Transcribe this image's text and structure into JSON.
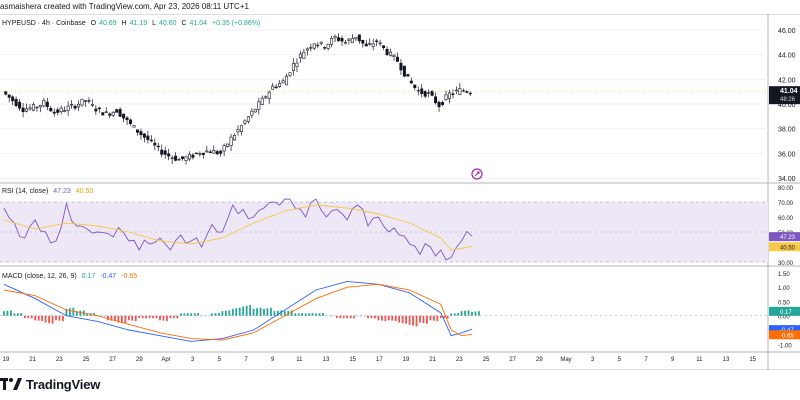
{
  "header": {
    "author_line": "asmaishera created with TradingView.com, Apr 23, 2026 08:11 UTC+1"
  },
  "brand": {
    "name": "TradingView"
  },
  "colors": {
    "up": "#26a69a",
    "down": "#ef5350",
    "rsi_line": "#7e57c2",
    "rsi_ma": "#f7c948",
    "rsi_band": "#ede7f6",
    "macd_line": "#2962ff",
    "signal_line": "#ff6d00",
    "hist_up": "#26a69a",
    "hist_down": "#ef5350",
    "price_label_bg": "#131722",
    "grid": "#f0f3fa"
  },
  "chart_data": [
    {
      "type": "candlestick",
      "legend": {
        "symbol": "HYPEUSD · 4h · Coinbase",
        "open_label": "O",
        "open": "40.69",
        "high_label": "H",
        "high": "41.19",
        "low_label": "L",
        "low": "40.60",
        "close_label": "C",
        "close": "41.04",
        "change": "+0.35 (+0.86%)"
      },
      "last_price": "41.04",
      "countdown": "48:26",
      "ylim": [
        34,
        46
      ],
      "yticks": [
        "46.00",
        "44.00",
        "42.00",
        "40.00",
        "38.00",
        "36.00",
        "34.00"
      ],
      "xlim": [
        0,
        60
      ],
      "price_path": [
        [
          0,
          41.0
        ],
        [
          1,
          40.3
        ],
        [
          2,
          39.6
        ],
        [
          3,
          39.7
        ],
        [
          4,
          40.1
        ],
        [
          5,
          39.3
        ],
        [
          6,
          39.6
        ],
        [
          7,
          39.9
        ],
        [
          8,
          40.3
        ],
        [
          9,
          39.6
        ],
        [
          10,
          39.2
        ],
        [
          11,
          39.5
        ],
        [
          12,
          38.6
        ],
        [
          13,
          37.8
        ],
        [
          14,
          37.1
        ],
        [
          15,
          36.3
        ],
        [
          16,
          35.8
        ],
        [
          17,
          35.5
        ],
        [
          18,
          35.7
        ],
        [
          19,
          36.1
        ],
        [
          20,
          36.2
        ],
        [
          21,
          36.0
        ],
        [
          22,
          37.2
        ],
        [
          23,
          38.2
        ],
        [
          24,
          39.3
        ],
        [
          25,
          40.3
        ],
        [
          26,
          41.4
        ],
        [
          27,
          41.8
        ],
        [
          28,
          43.2
        ],
        [
          29,
          44.3
        ],
        [
          30,
          45.0
        ],
        [
          31,
          44.7
        ],
        [
          32,
          45.4
        ],
        [
          33,
          45.0
        ],
        [
          34,
          45.5
        ],
        [
          35,
          44.6
        ],
        [
          36,
          45.1
        ],
        [
          37,
          44.2
        ],
        [
          38,
          43.5
        ],
        [
          39,
          42.0
        ],
        [
          40,
          41.0
        ],
        [
          41,
          40.8
        ],
        [
          42,
          39.9
        ],
        [
          43,
          40.8
        ],
        [
          44,
          41.1
        ],
        [
          45,
          41.04
        ]
      ]
    },
    {
      "type": "line",
      "name": "RSI",
      "legend": {
        "label": "RSI (14, close)",
        "value1": "47.23",
        "value2": "40.50"
      },
      "ylim": [
        30,
        80
      ],
      "yticks": [
        "80.00",
        "70.00",
        "60.00",
        "50.00",
        "40.00",
        "30.00"
      ],
      "band": [
        30,
        70
      ],
      "last_rsi": "47.23",
      "last_ma": "40.50",
      "rsi_path": [
        [
          0,
          66
        ],
        [
          1,
          56
        ],
        [
          2,
          46
        ],
        [
          3,
          58
        ],
        [
          4,
          50
        ],
        [
          5,
          44
        ],
        [
          6,
          69
        ],
        [
          7,
          54
        ],
        [
          8,
          52
        ],
        [
          9,
          50
        ],
        [
          10,
          49
        ],
        [
          11,
          53
        ],
        [
          12,
          44
        ],
        [
          13,
          38
        ],
        [
          14,
          42
        ],
        [
          15,
          46
        ],
        [
          16,
          38
        ],
        [
          17,
          48
        ],
        [
          18,
          44
        ],
        [
          19,
          40
        ],
        [
          20,
          55
        ],
        [
          21,
          50
        ],
        [
          22,
          68
        ],
        [
          23,
          65
        ],
        [
          24,
          60
        ],
        [
          25,
          66
        ],
        [
          26,
          70
        ],
        [
          27,
          72
        ],
        [
          28,
          66
        ],
        [
          29,
          60
        ],
        [
          30,
          72
        ],
        [
          31,
          60
        ],
        [
          32,
          65
        ],
        [
          33,
          58
        ],
        [
          34,
          68
        ],
        [
          35,
          54
        ],
        [
          36,
          60
        ],
        [
          37,
          50
        ],
        [
          38,
          48
        ],
        [
          39,
          42
        ],
        [
          40,
          35
        ],
        [
          41,
          40
        ],
        [
          42,
          38
        ],
        [
          43,
          33
        ],
        [
          44,
          44
        ],
        [
          45,
          47.23
        ]
      ],
      "ma_path": [
        [
          0,
          58
        ],
        [
          3,
          52
        ],
        [
          6,
          56
        ],
        [
          9,
          54
        ],
        [
          12,
          50
        ],
        [
          15,
          44
        ],
        [
          18,
          42
        ],
        [
          21,
          46
        ],
        [
          24,
          56
        ],
        [
          27,
          64
        ],
        [
          30,
          68
        ],
        [
          33,
          66
        ],
        [
          36,
          62
        ],
        [
          39,
          56
        ],
        [
          42,
          46
        ],
        [
          43,
          38
        ],
        [
          44,
          39
        ],
        [
          45,
          40.5
        ]
      ]
    },
    {
      "type": "line",
      "name": "MACD",
      "legend": {
        "label": "MACD (close, 12, 26, 9)",
        "hist": "0.17",
        "macd": "-0.47",
        "signal": "-0.65"
      },
      "ylim": [
        -1.2,
        1.6
      ],
      "yticks": [
        "1.50",
        "1.00",
        "0.50",
        "0.00",
        "-0.50",
        "-1.00"
      ],
      "last_hist": "0.17",
      "last_macd": "-0.47",
      "last_signal": "-0.65",
      "macd_path": [
        [
          0,
          1.1
        ],
        [
          3,
          0.6
        ],
        [
          6,
          0.0
        ],
        [
          9,
          -0.2
        ],
        [
          12,
          -0.5
        ],
        [
          15,
          -0.7
        ],
        [
          18,
          -0.9
        ],
        [
          21,
          -0.8
        ],
        [
          24,
          -0.5
        ],
        [
          27,
          0.2
        ],
        [
          30,
          0.9
        ],
        [
          33,
          1.2
        ],
        [
          36,
          1.1
        ],
        [
          39,
          0.8
        ],
        [
          42,
          0.1
        ],
        [
          43,
          -0.7
        ],
        [
          44,
          -0.6
        ],
        [
          45,
          -0.47
        ]
      ],
      "signal_path": [
        [
          0,
          0.9
        ],
        [
          3,
          0.7
        ],
        [
          6,
          0.2
        ],
        [
          9,
          0.0
        ],
        [
          12,
          -0.3
        ],
        [
          15,
          -0.6
        ],
        [
          18,
          -0.8
        ],
        [
          21,
          -0.85
        ],
        [
          24,
          -0.6
        ],
        [
          27,
          0.0
        ],
        [
          30,
          0.6
        ],
        [
          33,
          1.0
        ],
        [
          36,
          1.1
        ],
        [
          39,
          0.9
        ],
        [
          42,
          0.4
        ],
        [
          43,
          -0.5
        ],
        [
          44,
          -0.7
        ],
        [
          45,
          -0.65
        ]
      ],
      "hist": [
        0.2,
        0.1,
        -0.1,
        -0.2,
        -0.3,
        -0.2,
        0.3,
        0.2,
        0.1,
        0.0,
        -0.2,
        -0.3,
        -0.2,
        -0.1,
        -0.1,
        -0.2,
        -0.1,
        0.1,
        0.1,
        0.0,
        0.1,
        0.2,
        0.3,
        0.4,
        0.3,
        0.3,
        0.2,
        0.2,
        0.1,
        0.1,
        0.1,
        0.0,
        -0.1,
        -0.1,
        0.0,
        -0.1,
        -0.2,
        -0.2,
        -0.3,
        -0.4,
        -0.3,
        -0.2,
        -0.1,
        0.1,
        0.2,
        0.17
      ]
    }
  ],
  "x_axis": {
    "ticks": [
      "19",
      "21",
      "23",
      "25",
      "27",
      "29",
      "Apr",
      "3",
      "5",
      "7",
      "9",
      "11",
      "13",
      "15",
      "17",
      "19",
      "21",
      "23",
      "25",
      "27",
      "29",
      "May",
      "3",
      "5",
      "7",
      "9",
      "11",
      "13",
      "15"
    ]
  }
}
